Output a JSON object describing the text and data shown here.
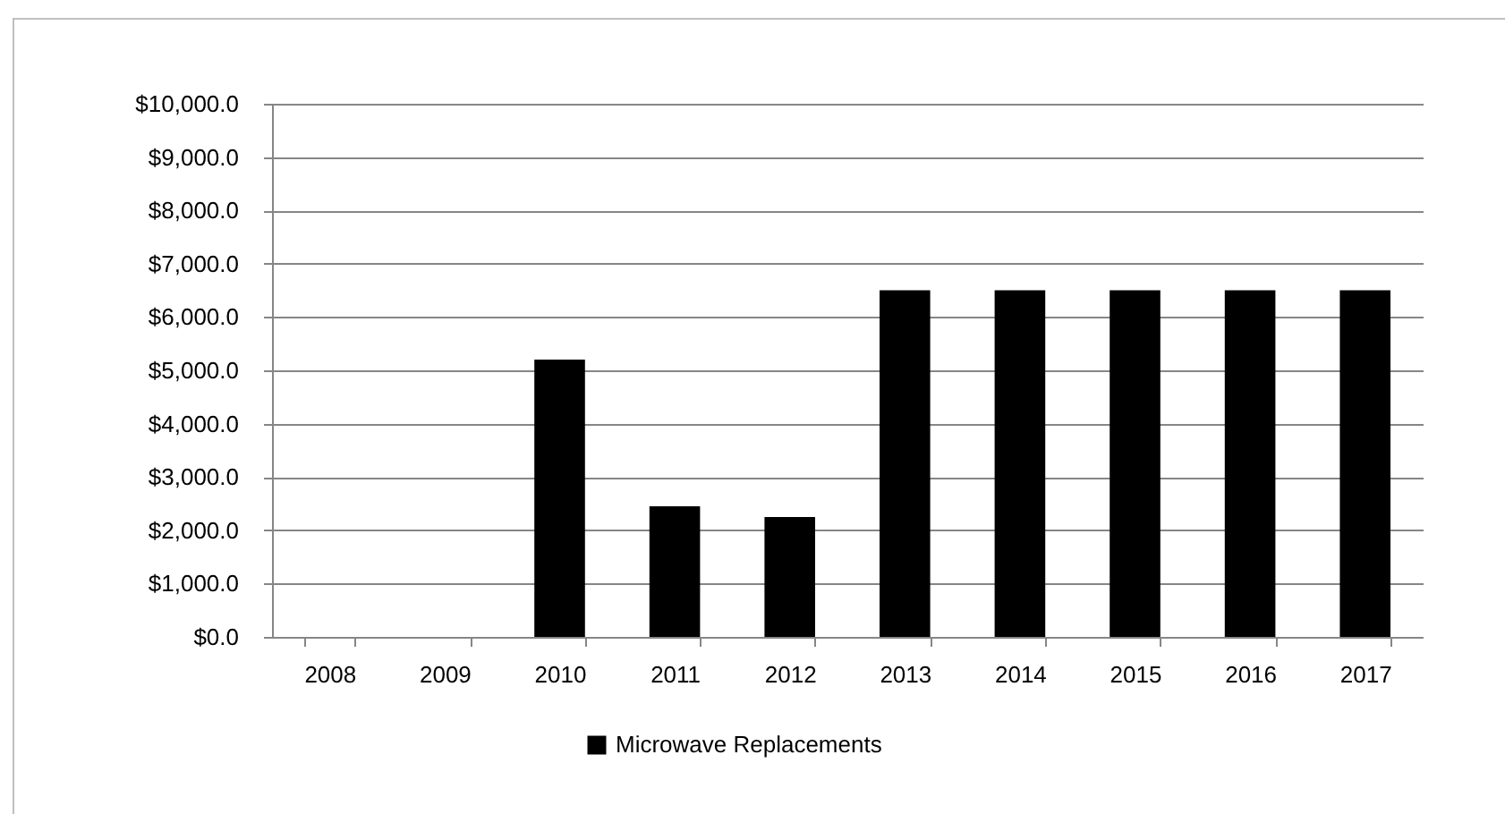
{
  "chart_data": {
    "type": "bar",
    "categories": [
      "2008",
      "2009",
      "2010",
      "2011",
      "2012",
      "2013",
      "2014",
      "2015",
      "2016",
      "2017"
    ],
    "series": [
      {
        "name": "Microwave Replacements",
        "color": "#000000",
        "values": [
          null,
          null,
          5200,
          2450,
          2250,
          6500,
          6500,
          6500,
          6500,
          6500
        ]
      }
    ],
    "ylim": [
      0,
      10000
    ],
    "yticks": [
      {
        "value": 0,
        "label": "$0.0"
      },
      {
        "value": 1000,
        "label": "$1,000.0"
      },
      {
        "value": 2000,
        "label": "$2,000.0"
      },
      {
        "value": 3000,
        "label": "$3,000.0"
      },
      {
        "value": 4000,
        "label": "$4,000.0"
      },
      {
        "value": 5000,
        "label": "$5,000.0"
      },
      {
        "value": 6000,
        "label": "$6,000.0"
      },
      {
        "value": 7000,
        "label": "$7,000.0"
      },
      {
        "value": 8000,
        "label": "$8,000.0"
      },
      {
        "value": 9000,
        "label": "$9,000.0"
      },
      {
        "value": 10000,
        "label": "$10,000.0"
      }
    ],
    "grid": "y",
    "legend": "bottom"
  }
}
